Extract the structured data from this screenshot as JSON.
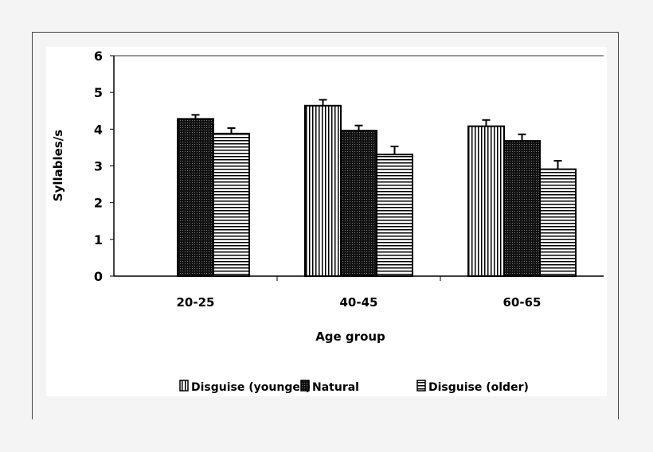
{
  "chart_data": {
    "type": "bar",
    "title": "",
    "xlabel": "Age group",
    "ylabel": "Syllables/s",
    "ylim": [
      0,
      6
    ],
    "yticks": [
      "0",
      "1",
      "2",
      "3",
      "4",
      "5",
      "6"
    ],
    "grid": false,
    "legend_position": "bottom",
    "categories": [
      "20-25",
      "40-45",
      "60-65"
    ],
    "series": [
      {
        "name": "Disguise (younger)",
        "pattern": "vertical-lines",
        "values": [
          null,
          4.64,
          4.08
        ],
        "error_top": [
          null,
          4.8,
          4.25
        ]
      },
      {
        "name": "Natural",
        "pattern": "dense-dots",
        "values": [
          4.28,
          3.96,
          3.68
        ],
        "error_top": [
          4.39,
          4.1,
          3.86
        ]
      },
      {
        "name": "Disguise (older)",
        "pattern": "horizontal-lines",
        "values": [
          3.88,
          3.31,
          2.91
        ],
        "error_top": [
          4.03,
          3.53,
          3.14
        ]
      }
    ],
    "colors": {
      "background": "#f4f4f4",
      "panel": "#ffffff",
      "ink": "#000000"
    }
  }
}
